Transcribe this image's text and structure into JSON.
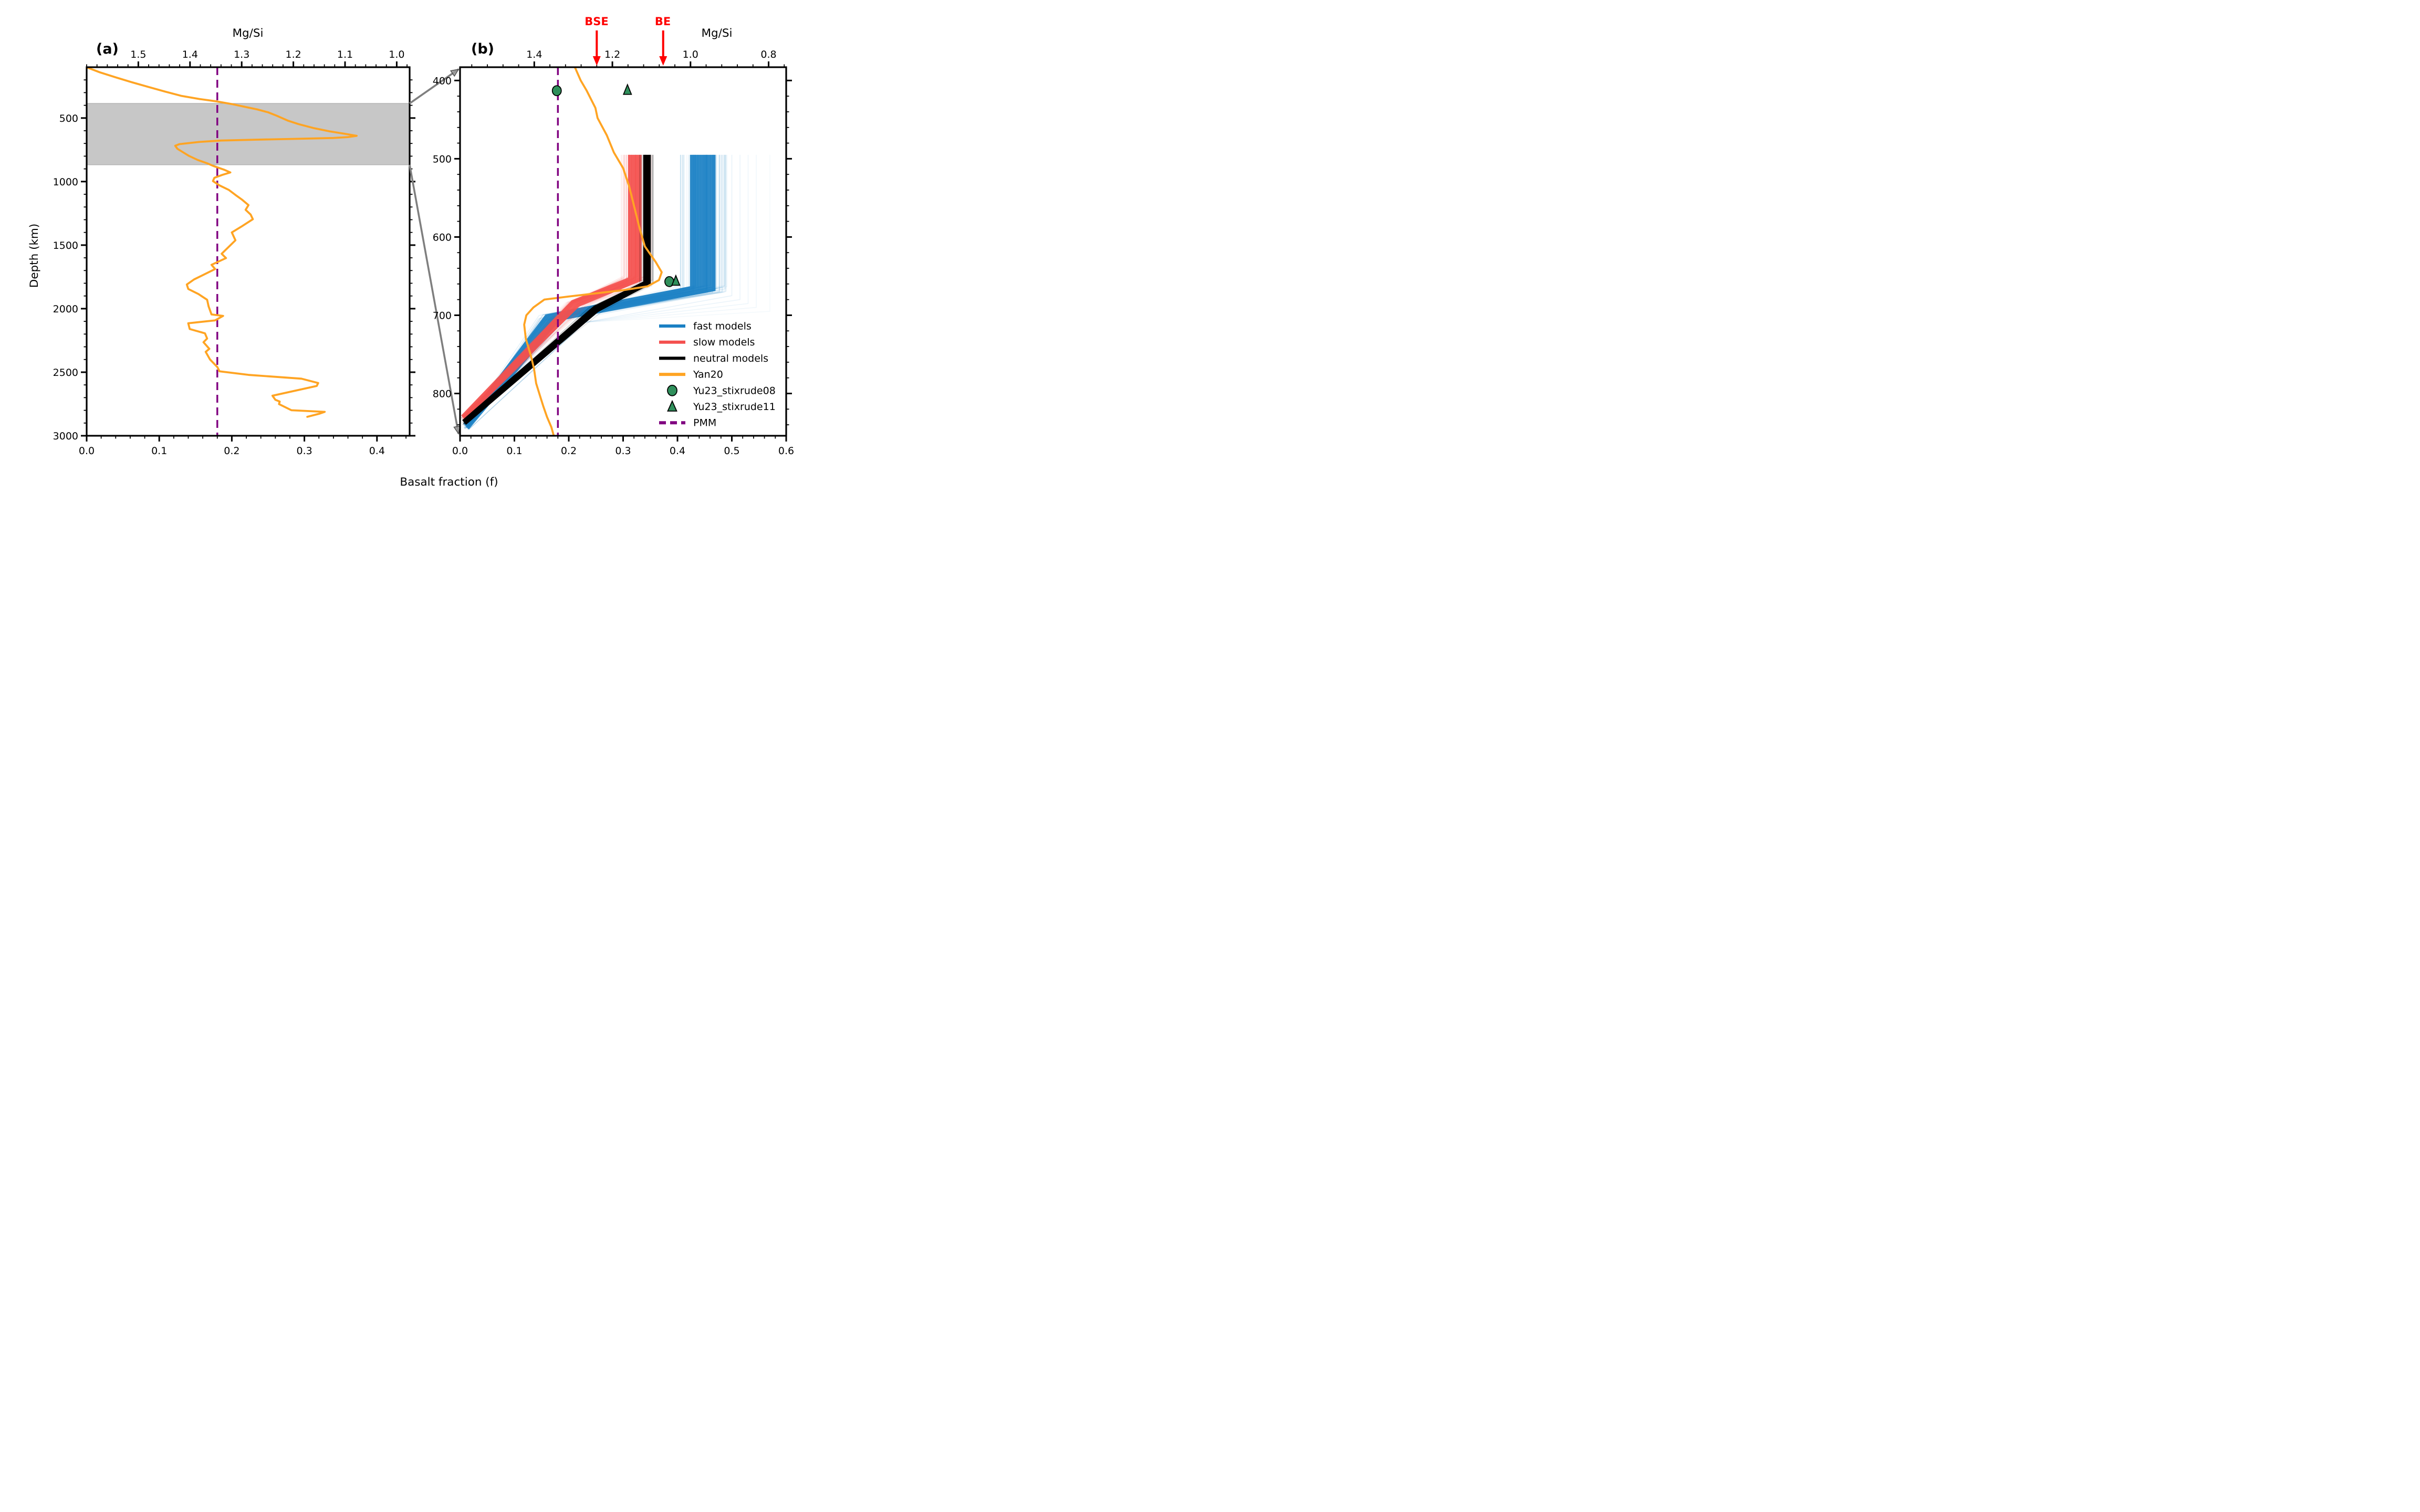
{
  "figure": {
    "shared_xlabel": "Basalt fraction (f)",
    "colors": {
      "fast": "#1A80C4",
      "slow": "#F4504E",
      "neutral": "#000000",
      "yan20": "#FFA423",
      "pmm": "#800080",
      "marker_green": "#2F8F5B",
      "gray_band": "#C7C7C7",
      "gray_band_edge": "#ADADAD",
      "connector_gray": "#7F7F7F",
      "annotation_red": "#FF0000"
    }
  },
  "legend": {
    "items": [
      {
        "label": "fast models",
        "swatch": "line",
        "color": "#1A80C4"
      },
      {
        "label": "slow models",
        "swatch": "line",
        "color": "#F4504E"
      },
      {
        "label": "neutral models",
        "swatch": "line",
        "color": "#000000"
      },
      {
        "label": "Yan20",
        "swatch": "line",
        "color": "#FFA423"
      },
      {
        "label": "Yu23_stixrude08",
        "swatch": "circle",
        "color": "#2F8F5B"
      },
      {
        "label": "Yu23_stixrude11",
        "swatch": "triangle",
        "color": "#2F8F5B"
      },
      {
        "label": "PMM",
        "swatch": "dashed",
        "color": "#800080"
      }
    ]
  },
  "chart_data": [
    {
      "id": "panel_a",
      "type": "line",
      "panel_label": "(a)",
      "xlabel_top": "Mg/Si",
      "ylabel": "Depth (km)",
      "x_bottom": {
        "label": "Basalt fraction (f)",
        "range": [
          0.0,
          0.445
        ],
        "major_ticks": [
          0.0,
          0.1,
          0.2,
          0.3,
          0.4
        ],
        "minor_step": 0.02
      },
      "x_top_mgsi": {
        "range": [
          1.6,
          0.975
        ],
        "major_ticks": [
          1.5,
          1.4,
          1.3,
          1.2,
          1.1,
          1.0
        ],
        "minor_step": 0.02
      },
      "y_depth": {
        "range": [
          100,
          3000
        ],
        "major_ticks": [
          500,
          1000,
          1500,
          2000,
          2500,
          3000
        ],
        "minor_step": 100
      },
      "gray_band_depth": [
        385,
        868
      ],
      "pmm_f": 0.18,
      "series": [
        {
          "name": "Yan20",
          "color": "#FFA423",
          "points_f_depth": [
            [
              0.002,
              105
            ],
            [
              0.018,
              140
            ],
            [
              0.04,
              180
            ],
            [
              0.062,
              218
            ],
            [
              0.085,
              255
            ],
            [
              0.108,
              292
            ],
            [
              0.13,
              325
            ],
            [
              0.155,
              350
            ],
            [
              0.178,
              368
            ],
            [
              0.2,
              390
            ],
            [
              0.218,
              412
            ],
            [
              0.235,
              432
            ],
            [
              0.25,
              455
            ],
            [
              0.262,
              482
            ],
            [
              0.277,
              520
            ],
            [
              0.292,
              548
            ],
            [
              0.312,
              578
            ],
            [
              0.335,
              605
            ],
            [
              0.357,
              625
            ],
            [
              0.372,
              640
            ],
            [
              0.36,
              650
            ],
            [
              0.34,
              657
            ],
            [
              0.295,
              663
            ],
            [
              0.235,
              670
            ],
            [
              0.185,
              677
            ],
            [
              0.155,
              688
            ],
            [
              0.128,
              705
            ],
            [
              0.122,
              718
            ],
            [
              0.125,
              742
            ],
            [
              0.133,
              770
            ],
            [
              0.141,
              798
            ],
            [
              0.153,
              830
            ],
            [
              0.166,
              856
            ],
            [
              0.175,
              878
            ],
            [
              0.19,
              908
            ],
            [
              0.198,
              928
            ],
            [
              0.187,
              947
            ],
            [
              0.176,
              970
            ],
            [
              0.174,
              996
            ],
            [
              0.183,
              1030
            ],
            [
              0.196,
              1066
            ],
            [
              0.205,
              1105
            ],
            [
              0.214,
              1142
            ],
            [
              0.223,
              1185
            ],
            [
              0.219,
              1222
            ],
            [
              0.226,
              1260
            ],
            [
              0.229,
              1296
            ],
            [
              0.213,
              1355
            ],
            [
              0.2,
              1400
            ],
            [
              0.205,
              1462
            ],
            [
              0.186,
              1568
            ],
            [
              0.192,
              1602
            ],
            [
              0.172,
              1655
            ],
            [
              0.177,
              1688
            ],
            [
              0.148,
              1770
            ],
            [
              0.138,
              1810
            ],
            [
              0.14,
              1845
            ],
            [
              0.154,
              1885
            ],
            [
              0.166,
              1930
            ],
            [
              0.168,
              1982
            ],
            [
              0.172,
              2045
            ],
            [
              0.188,
              2057
            ],
            [
              0.177,
              2092
            ],
            [
              0.14,
              2115
            ],
            [
              0.142,
              2160
            ],
            [
              0.163,
              2194
            ],
            [
              0.166,
              2235
            ],
            [
              0.161,
              2264
            ],
            [
              0.169,
              2316
            ],
            [
              0.164,
              2340
            ],
            [
              0.17,
              2400
            ],
            [
              0.18,
              2459
            ],
            [
              0.183,
              2493
            ],
            [
              0.223,
              2521
            ],
            [
              0.296,
              2551
            ],
            [
              0.319,
              2585
            ],
            [
              0.317,
              2608
            ],
            [
              0.256,
              2685
            ],
            [
              0.26,
              2717
            ],
            [
              0.266,
              2731
            ],
            [
              0.265,
              2751
            ],
            [
              0.282,
              2799
            ],
            [
              0.328,
              2812
            ],
            [
              0.321,
              2826
            ],
            [
              0.304,
              2851
            ]
          ]
        }
      ]
    },
    {
      "id": "panel_b",
      "type": "line",
      "panel_label": "(b)",
      "xlabel_top": "Mg/Si",
      "x_bottom": {
        "range": [
          0.0,
          0.6
        ],
        "major_ticks": [
          0.0,
          0.1,
          0.2,
          0.3,
          0.4,
          0.5,
          0.6
        ],
        "minor_step": 0.02
      },
      "x_top_mgsi": {
        "range": [
          1.59,
          0.755
        ],
        "major_ticks": [
          1.4,
          1.2,
          1.0,
          0.8
        ],
        "minor_step": 0.04
      },
      "y_depth": {
        "range": [
          383,
          854
        ],
        "major_ticks": [
          400,
          500,
          600,
          700,
          800
        ],
        "minor_step": 20
      },
      "pmm_f": 0.18,
      "annotations": [
        {
          "label": "BSE",
          "mgsi": 1.24
        },
        {
          "label": "BE",
          "mgsi": 1.07
        }
      ],
      "bands": [
        {
          "name": "fast models",
          "color": "#1A80C4",
          "f_solid": [
            0.423,
            0.47
          ],
          "f_haze": [
            0.405,
            0.493
          ],
          "outlier_f": [
            0.5,
            0.515,
            0.53,
            0.545,
            0.57
          ],
          "top_depth": 495,
          "kink_depth": [
            663,
            669
          ],
          "mid": [
            0.17,
            703
          ],
          "converge": [
            [
              0.006,
              838
            ],
            [
              0.016,
              846
            ]
          ],
          "hairs": 70
        },
        {
          "name": "slow models",
          "color": "#F4504E",
          "f_solid": [
            0.309,
            0.334
          ],
          "f_haze": [
            0.296,
            0.353
          ],
          "outlier_f": [],
          "top_depth": 495,
          "kink_depth": [
            652,
            656
          ],
          "mid": [
            0.212,
            685
          ],
          "converge": [
            [
              0.002,
              828
            ],
            [
              0.01,
              834
            ]
          ],
          "hairs": 55
        },
        {
          "name": "neutral models",
          "color": "#000000",
          "f_solid": [
            0.337,
            0.351
          ],
          "f_haze": [
            0.33,
            0.356
          ],
          "outlier_f": [],
          "top_depth": 495,
          "kink_depth": [
            657,
            660
          ],
          "mid": [
            0.25,
            692
          ],
          "converge": [
            [
              0.004,
              834
            ],
            [
              0.011,
              840
            ]
          ],
          "hairs": 30
        }
      ],
      "series": [
        {
          "name": "Yan20",
          "color": "#FFA423",
          "points_f_depth": [
            [
              0.21,
              381
            ],
            [
              0.222,
              400
            ],
            [
              0.233,
              413
            ],
            [
              0.249,
              435
            ],
            [
              0.253,
              448
            ],
            [
              0.27,
              470
            ],
            [
              0.283,
              492
            ],
            [
              0.3,
              512
            ],
            [
              0.311,
              535
            ],
            [
              0.32,
              560
            ],
            [
              0.33,
              588
            ],
            [
              0.34,
              612
            ],
            [
              0.36,
              632
            ],
            [
              0.371,
              645
            ],
            [
              0.366,
              655
            ],
            [
              0.345,
              663
            ],
            [
              0.3,
              668
            ],
            [
              0.25,
              672
            ],
            [
              0.2,
              676
            ],
            [
              0.155,
              680
            ],
            [
              0.135,
              690
            ],
            [
              0.122,
              700
            ],
            [
              0.118,
              712
            ],
            [
              0.121,
              730
            ],
            [
              0.13,
              751
            ],
            [
              0.136,
              768
            ],
            [
              0.14,
              787
            ],
            [
              0.148,
              805
            ],
            [
              0.153,
              816
            ],
            [
              0.16,
              830
            ],
            [
              0.168,
              843
            ],
            [
              0.172,
              853
            ]
          ]
        }
      ],
      "markers": [
        {
          "type": "circle",
          "name": "Yu23_stixrude08",
          "f": 0.178,
          "depth": 413
        },
        {
          "type": "triangle",
          "name": "Yu23_stixrude11",
          "f": 0.308,
          "depth": 412
        },
        {
          "type": "circle",
          "name": "Yu23_stixrude08",
          "f": 0.385,
          "depth": 657
        },
        {
          "type": "triangle",
          "name": "Yu23_stixrude11",
          "f": 0.397,
          "depth": 656
        }
      ]
    }
  ]
}
